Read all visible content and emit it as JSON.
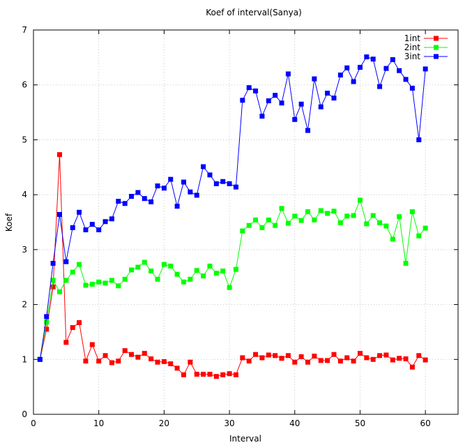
{
  "chart_data": {
    "type": "line",
    "title": "Koef of interval(Sanya)",
    "xlabel": "Interval",
    "ylabel": "Koef",
    "xlim": [
      0,
      65
    ],
    "ylim": [
      0,
      7
    ],
    "xticks": [
      0,
      10,
      20,
      30,
      40,
      50,
      60
    ],
    "yticks": [
      0,
      1,
      2,
      3,
      4,
      5,
      6,
      7
    ],
    "grid": true,
    "legend_position": "top-right",
    "series": [
      {
        "name": "1int",
        "color": "#ff0000",
        "x": [
          1,
          2,
          3,
          4,
          5,
          6,
          7,
          8,
          9,
          10,
          11,
          12,
          13,
          14,
          15,
          16,
          17,
          18,
          19,
          20,
          21,
          22,
          23,
          24,
          25,
          26,
          27,
          28,
          29,
          30,
          31,
          32,
          33,
          34,
          35,
          36,
          37,
          38,
          39,
          40,
          41,
          42,
          43,
          44,
          45,
          46,
          47,
          48,
          49,
          50,
          51,
          52,
          53,
          54,
          55,
          56,
          57,
          58,
          59,
          60
        ],
        "values": [
          1.0,
          1.55,
          2.32,
          4.73,
          1.31,
          1.58,
          1.67,
          0.97,
          1.27,
          0.97,
          1.07,
          0.94,
          0.97,
          1.16,
          1.09,
          1.04,
          1.11,
          1.01,
          0.95,
          0.96,
          0.92,
          0.84,
          0.72,
          0.95,
          0.73,
          0.73,
          0.73,
          0.69,
          0.72,
          0.74,
          0.72,
          1.03,
          0.97,
          1.09,
          1.03,
          1.08,
          1.07,
          1.02,
          1.07,
          0.95,
          1.05,
          0.95,
          1.06,
          0.98,
          0.98,
          1.09,
          0.97,
          1.03,
          0.97,
          1.11,
          1.03,
          1.0,
          1.07,
          1.08,
          0.99,
          1.02,
          1.01,
          0.86,
          1.07,
          0.99
        ]
      },
      {
        "name": "2int",
        "color": "#00ff00",
        "x": [
          1,
          2,
          3,
          4,
          5,
          6,
          7,
          8,
          9,
          10,
          11,
          12,
          13,
          14,
          15,
          16,
          17,
          18,
          19,
          20,
          21,
          22,
          23,
          24,
          25,
          26,
          27,
          28,
          29,
          30,
          31,
          32,
          33,
          34,
          35,
          36,
          37,
          38,
          39,
          40,
          41,
          42,
          43,
          44,
          45,
          46,
          47,
          48,
          49,
          50,
          51,
          52,
          53,
          54,
          55,
          56,
          57,
          58,
          59,
          60
        ],
        "values": [
          1.0,
          1.68,
          2.44,
          2.23,
          2.44,
          2.59,
          2.73,
          2.35,
          2.37,
          2.41,
          2.39,
          2.44,
          2.34,
          2.46,
          2.63,
          2.68,
          2.77,
          2.61,
          2.46,
          2.73,
          2.7,
          2.55,
          2.41,
          2.46,
          2.62,
          2.52,
          2.7,
          2.57,
          2.61,
          2.31,
          2.64,
          3.34,
          3.44,
          3.54,
          3.4,
          3.54,
          3.44,
          3.75,
          3.48,
          3.61,
          3.53,
          3.69,
          3.54,
          3.71,
          3.66,
          3.7,
          3.49,
          3.61,
          3.62,
          3.9,
          3.47,
          3.62,
          3.49,
          3.43,
          3.19,
          3.6,
          2.75,
          3.69,
          3.25,
          3.39
        ]
      },
      {
        "name": "3int",
        "color": "#0000ff",
        "x": [
          1,
          2,
          3,
          4,
          5,
          6,
          7,
          8,
          9,
          10,
          11,
          12,
          13,
          14,
          15,
          16,
          17,
          18,
          19,
          20,
          21,
          22,
          23,
          24,
          25,
          26,
          27,
          28,
          29,
          30,
          31,
          32,
          33,
          34,
          35,
          36,
          37,
          38,
          39,
          40,
          41,
          42,
          43,
          44,
          45,
          46,
          47,
          48,
          49,
          50,
          51,
          52,
          53,
          54,
          55,
          56,
          57,
          58,
          59,
          60
        ],
        "values": [
          1.0,
          1.78,
          2.75,
          3.64,
          2.78,
          3.4,
          3.68,
          3.36,
          3.46,
          3.36,
          3.51,
          3.56,
          3.88,
          3.84,
          3.97,
          4.04,
          3.93,
          3.87,
          4.16,
          4.12,
          4.28,
          3.79,
          4.23,
          4.05,
          3.99,
          4.51,
          4.36,
          4.2,
          4.24,
          4.2,
          4.14,
          5.72,
          5.95,
          5.89,
          5.43,
          5.71,
          5.81,
          5.67,
          6.2,
          5.37,
          5.65,
          5.17,
          6.11,
          5.6,
          5.85,
          5.76,
          6.18,
          6.31,
          6.06,
          6.32,
          6.51,
          6.47,
          5.97,
          6.3,
          6.46,
          6.26,
          6.1,
          5.94,
          5.0,
          6.29
        ]
      }
    ]
  }
}
